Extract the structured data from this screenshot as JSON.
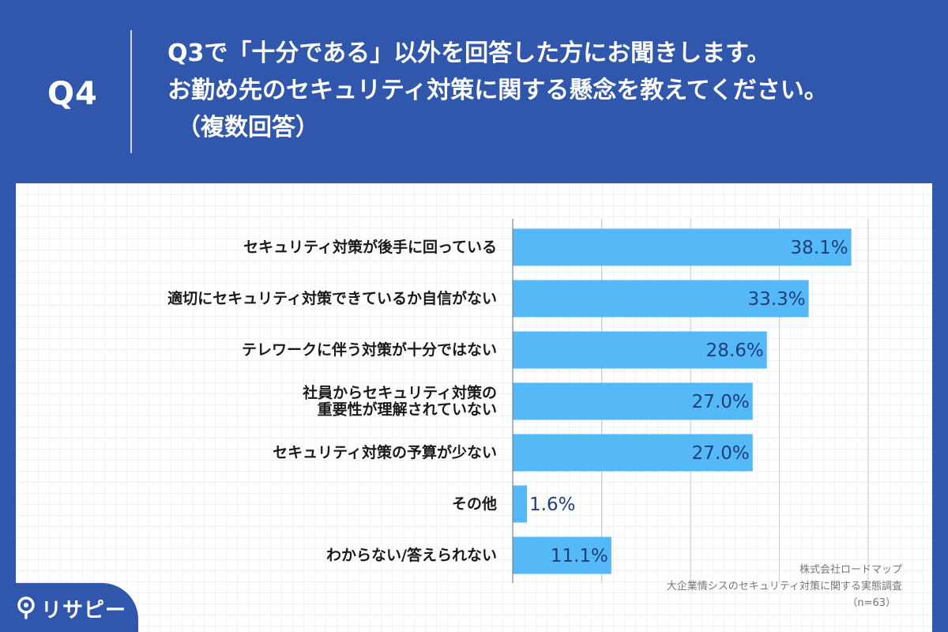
{
  "header": {
    "q_number": "Q4",
    "question_line1": "Q3で「十分である」以外を回答した方にお聞きします。",
    "question_line2": "お勤め先のセキュリティ対策に関する懸念を教えてください。",
    "question_line3": "（複数回答）"
  },
  "source": {
    "company": "株式会社ロードマップ",
    "survey": "大企業情シスのセキュリティ対策に関する実態調査",
    "n": "（n=63）"
  },
  "brand": {
    "name": "リサピー",
    "icon": "pin-icon"
  },
  "colors": {
    "background": "#3157ad",
    "bar": "#55b9f8",
    "value_text": "#1d3f78"
  },
  "chart_data": {
    "type": "bar",
    "orientation": "horizontal",
    "categories": [
      [
        "セキュリティ対策が後手に回っている"
      ],
      [
        "適切にセキュリティ対策できているか自信がない"
      ],
      [
        "テレワークに伴う対策が十分ではない"
      ],
      [
        "社員からセキュリティ対策の",
        "重要性が理解されていない"
      ],
      [
        "セキュリティ対策の予算が少ない"
      ],
      [
        "その他"
      ],
      [
        "わからない/答えられない"
      ]
    ],
    "values": [
      38.1,
      33.3,
      28.6,
      27.0,
      27.0,
      1.6,
      11.1
    ],
    "value_labels": [
      "38.1%",
      "33.3%",
      "28.6%",
      "27.0%",
      "27.0%",
      "1.6%",
      "11.1%"
    ],
    "xlim": [
      0,
      40
    ],
    "grid_step": 10,
    "grid": true
  }
}
